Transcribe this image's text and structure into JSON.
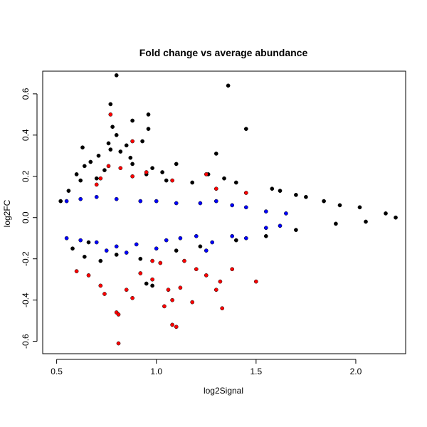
{
  "chart_data": {
    "type": "scatter",
    "title": "Fold change vs average abundance",
    "xlabel": "log2Signal",
    "ylabel": "log2FC",
    "xlim": [
      0.43,
      2.25
    ],
    "ylim": [
      -0.66,
      0.71
    ],
    "xticks": [
      "0.5",
      "1.0",
      "1.5",
      "2.0"
    ],
    "yticks": [
      "-0.6",
      "-0.4",
      "-0.2",
      "0.0",
      "0.2",
      "0.4",
      "0.6"
    ],
    "grid": false,
    "legend": "none",
    "colors": {
      "background": "#000000",
      "significant": "#0000ff",
      "highlight": "#ff0000"
    },
    "series": [
      {
        "color": "#000000",
        "points": [
          [
            0.8,
            0.69
          ],
          [
            1.36,
            0.64
          ],
          [
            0.77,
            0.55
          ],
          [
            0.96,
            0.5
          ],
          [
            0.88,
            0.47
          ],
          [
            0.78,
            0.44
          ],
          [
            0.96,
            0.43
          ],
          [
            1.45,
            0.43
          ],
          [
            0.8,
            0.4
          ],
          [
            0.93,
            0.37
          ],
          [
            0.76,
            0.36
          ],
          [
            0.85,
            0.35
          ],
          [
            0.63,
            0.34
          ],
          [
            0.77,
            0.33
          ],
          [
            0.82,
            0.32
          ],
          [
            1.3,
            0.31
          ],
          [
            0.71,
            0.3
          ],
          [
            0.87,
            0.29
          ],
          [
            0.67,
            0.27
          ],
          [
            0.88,
            0.26
          ],
          [
            0.64,
            0.25
          ],
          [
            1.1,
            0.26
          ],
          [
            0.98,
            0.24
          ],
          [
            1.03,
            0.22
          ],
          [
            0.74,
            0.23
          ],
          [
            1.26,
            0.21
          ],
          [
            0.6,
            0.21
          ],
          [
            0.95,
            0.21
          ],
          [
            1.34,
            0.19
          ],
          [
            0.7,
            0.19
          ],
          [
            1.4,
            0.17
          ],
          [
            0.62,
            0.18
          ],
          [
            1.05,
            0.18
          ],
          [
            1.18,
            0.17
          ],
          [
            1.58,
            0.14
          ],
          [
            1.62,
            0.13
          ],
          [
            1.7,
            0.11
          ],
          [
            1.75,
            0.1
          ],
          [
            1.84,
            0.08
          ],
          [
            1.92,
            0.06
          ],
          [
            2.02,
            0.05
          ],
          [
            2.15,
            0.02
          ],
          [
            2.2,
            0.0
          ],
          [
            0.52,
            0.08
          ],
          [
            0.56,
            0.13
          ],
          [
            0.64,
            -0.19
          ],
          [
            0.72,
            -0.21
          ],
          [
            0.8,
            -0.18
          ],
          [
            0.92,
            -0.2
          ],
          [
            0.95,
            -0.32
          ],
          [
            0.58,
            -0.15
          ],
          [
            0.66,
            -0.12
          ],
          [
            1.1,
            -0.16
          ],
          [
            1.22,
            -0.14
          ],
          [
            1.4,
            -0.11
          ],
          [
            1.55,
            -0.09
          ],
          [
            1.7,
            -0.06
          ],
          [
            1.9,
            -0.03
          ],
          [
            2.05,
            -0.02
          ],
          [
            0.98,
            -0.33
          ]
        ]
      },
      {
        "color": "#0000ff",
        "points": [
          [
            0.55,
            0.08
          ],
          [
            0.62,
            0.09
          ],
          [
            0.7,
            0.1
          ],
          [
            0.8,
            0.09
          ],
          [
            0.92,
            0.08
          ],
          [
            1.0,
            0.08
          ],
          [
            1.1,
            0.07
          ],
          [
            1.22,
            0.07
          ],
          [
            1.3,
            0.08
          ],
          [
            1.38,
            0.06
          ],
          [
            1.45,
            0.05
          ],
          [
            1.55,
            0.03
          ],
          [
            1.65,
            0.02
          ],
          [
            0.55,
            -0.1
          ],
          [
            0.62,
            -0.11
          ],
          [
            0.7,
            -0.12
          ],
          [
            0.8,
            -0.14
          ],
          [
            0.9,
            -0.13
          ],
          [
            1.0,
            -0.15
          ],
          [
            1.05,
            -0.11
          ],
          [
            1.12,
            -0.1
          ],
          [
            1.2,
            -0.09
          ],
          [
            1.28,
            -0.12
          ],
          [
            1.38,
            -0.09
          ],
          [
            1.45,
            -0.1
          ],
          [
            1.55,
            -0.05
          ],
          [
            1.62,
            -0.04
          ],
          [
            0.85,
            -0.17
          ],
          [
            0.75,
            -0.16
          ],
          [
            1.25,
            -0.16
          ]
        ]
      },
      {
        "color": "#ff0000",
        "points": [
          [
            0.77,
            0.5
          ],
          [
            0.88,
            0.37
          ],
          [
            0.76,
            0.25
          ],
          [
            0.82,
            0.24
          ],
          [
            0.95,
            0.22
          ],
          [
            0.72,
            0.19
          ],
          [
            0.88,
            0.2
          ],
          [
            1.25,
            0.21
          ],
          [
            1.3,
            0.14
          ],
          [
            1.45,
            0.12
          ],
          [
            0.7,
            0.16
          ],
          [
            1.08,
            0.18
          ],
          [
            0.6,
            -0.26
          ],
          [
            0.66,
            -0.28
          ],
          [
            0.72,
            -0.33
          ],
          [
            0.74,
            -0.37
          ],
          [
            0.8,
            -0.46
          ],
          [
            0.81,
            -0.47
          ],
          [
            0.81,
            -0.61
          ],
          [
            0.85,
            -0.35
          ],
          [
            0.88,
            -0.39
          ],
          [
            0.92,
            -0.27
          ],
          [
            0.98,
            -0.3
          ],
          [
            1.02,
            -0.22
          ],
          [
            1.04,
            -0.43
          ],
          [
            1.06,
            -0.35
          ],
          [
            1.08,
            -0.4
          ],
          [
            1.08,
            -0.52
          ],
          [
            1.1,
            -0.53
          ],
          [
            1.12,
            -0.34
          ],
          [
            1.18,
            -0.41
          ],
          [
            1.25,
            -0.28
          ],
          [
            1.3,
            -0.35
          ],
          [
            1.32,
            -0.31
          ],
          [
            1.33,
            -0.44
          ],
          [
            1.38,
            -0.25
          ],
          [
            1.5,
            -0.31
          ],
          [
            1.2,
            -0.25
          ],
          [
            1.14,
            -0.21
          ],
          [
            0.98,
            -0.21
          ]
        ]
      }
    ]
  }
}
